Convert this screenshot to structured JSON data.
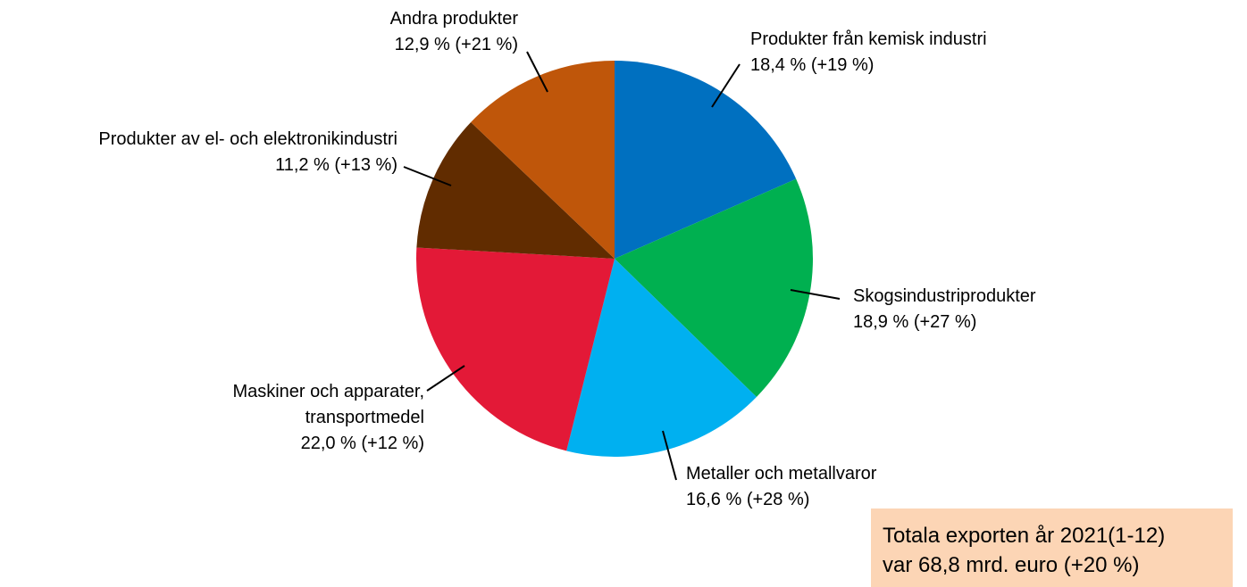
{
  "chart_data": {
    "type": "pie",
    "categories": [
      "Produkter från kemisk industri",
      "Skogsindustriprodukter",
      "Metaller och metallvaror",
      "Maskiner och apparater,\ntransportmedel",
      "Produkter av el- och elektronikindustri",
      "Andra produkter"
    ],
    "values": [
      18.4,
      18.9,
      16.6,
      22.0,
      11.2,
      12.9
    ],
    "value_labels": [
      "18,4 % (+19 %)",
      "18,9 % (+27 %)",
      "16,6 % (+28 %)",
      "22,0 % (+12 %)",
      "11,2 % (+13 %)",
      "12,9 % (+21 %)"
    ],
    "colors": [
      "#0070c0",
      "#00b050",
      "#00b0f0",
      "#e31937",
      "#612c00",
      "#bf560a"
    ],
    "annotation": "Totala exporten år 2021(1-12)\nvar 68,8 mrd. euro (+20 %)"
  }
}
